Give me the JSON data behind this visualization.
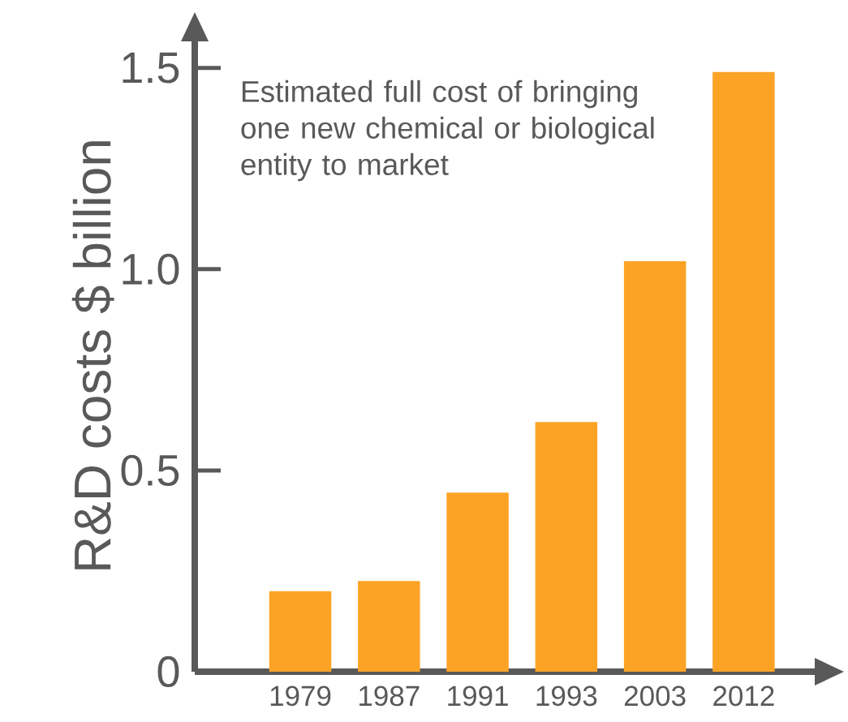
{
  "chart_data": {
    "type": "bar",
    "ylabel": "R&D costs $ billion",
    "annotations": [
      "Estimated full cost of bringing one new chemical or biological entity to market"
    ],
    "categories": [
      "1979",
      "1987",
      "1991",
      "1993",
      "2003",
      "2012"
    ],
    "values": [
      0.2,
      0.225,
      0.445,
      0.62,
      1.02,
      1.49
    ],
    "color": "#fca326",
    "ylim": [
      0,
      1.57
    ],
    "yticks": [
      {
        "value": 0,
        "label": "0"
      },
      {
        "value": 0.5,
        "label": "0.5"
      },
      {
        "value": 1.0,
        "label": "1.0"
      },
      {
        "value": 1.5,
        "label": "1.5"
      }
    ]
  }
}
